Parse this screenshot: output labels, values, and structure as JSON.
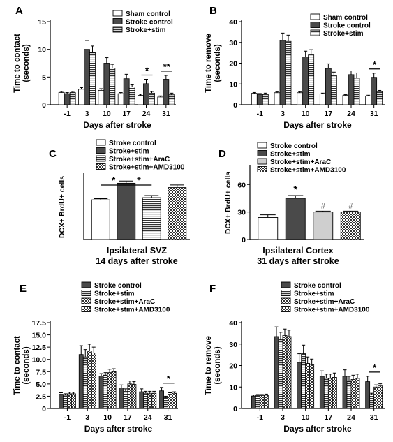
{
  "patterns": {
    "white": "#ffffff",
    "dark": "#4a4a4a",
    "hstripe": "#ffffff",
    "check": "#ffffff",
    "light": "#cfcfcf"
  },
  "chart_data": [
    {
      "panel": "A",
      "type": "bar",
      "ylabel": "Time to contact (seconds)",
      "ylabel_lines": [
        "Time to contact",
        "(seconds)"
      ],
      "xlabel": "Days after stroke",
      "ylim": [
        0,
        15
      ],
      "yticks": [
        0,
        5,
        10,
        15
      ],
      "categories": [
        "-1",
        "3",
        "10",
        "17",
        "24",
        "31"
      ],
      "series": [
        {
          "name": "Sham control",
          "fill": "white",
          "values": [
            2.2,
            2.8,
            2.6,
            2.0,
            1.7,
            1.4
          ],
          "err": [
            0.2,
            0.3,
            0.3,
            0.2,
            0.2,
            0.2
          ]
        },
        {
          "name": "Stroke control",
          "fill": "dark",
          "values": [
            2.0,
            10.0,
            7.5,
            4.7,
            3.8,
            4.6
          ],
          "err": [
            0.2,
            1.6,
            1.0,
            0.8,
            0.8,
            0.7
          ]
        },
        {
          "name": "Stroke+stim",
          "fill": "hstripe",
          "values": [
            2.2,
            9.4,
            6.6,
            3.2,
            2.1,
            1.8
          ],
          "err": [
            0.2,
            1.2,
            0.7,
            0.4,
            0.3,
            0.3
          ]
        }
      ],
      "annotations": [
        {
          "text": "*",
          "cat": 4
        },
        {
          "text": "**",
          "cat": 5
        }
      ]
    },
    {
      "panel": "B",
      "type": "bar",
      "ylabel": "Time to remove (seconds)",
      "ylabel_lines": [
        "Time to remove",
        "(seconds)"
      ],
      "xlabel": "Days after stroke",
      "ylim": [
        0,
        40
      ],
      "yticks": [
        0,
        10,
        20,
        30,
        40
      ],
      "categories": [
        "-1",
        "3",
        "10",
        "17",
        "24",
        "31"
      ],
      "series": [
        {
          "name": "Sham control",
          "fill": "white",
          "values": [
            5.5,
            5.8,
            5.8,
            5.2,
            4.5,
            4.2
          ],
          "err": [
            0.4,
            0.5,
            0.5,
            0.4,
            0.4,
            0.4
          ]
        },
        {
          "name": "Stroke control",
          "fill": "dark",
          "values": [
            5.0,
            31.0,
            23.0,
            17.5,
            14.5,
            13.2
          ],
          "err": [
            0.4,
            3.5,
            2.8,
            2.2,
            1.8,
            2.0
          ]
        },
        {
          "name": "Stroke+stim",
          "fill": "hstripe",
          "values": [
            5.2,
            30.5,
            24.0,
            14.2,
            12.8,
            6.3
          ],
          "err": [
            0.4,
            3.0,
            2.5,
            1.5,
            2.5,
            0.6
          ]
        }
      ],
      "annotations": [
        {
          "text": "*",
          "cat": 5
        }
      ]
    },
    {
      "panel": "C",
      "type": "bar",
      "ylabel": "DCX+ BrdU+ cells",
      "caption": [
        "Ipsilateral SVZ",
        "14 days after stroke"
      ],
      "series": [
        {
          "name": "Stroke control",
          "fill": "white",
          "value": 275,
          "err": 8
        },
        {
          "name": "Stroke+stim",
          "fill": "dark",
          "value": 390,
          "err": 15
        },
        {
          "name": "Stroke+stim+AraC",
          "fill": "hstripe",
          "value": 290,
          "err": 15
        },
        {
          "name": "Stroke+stim+AMD3100",
          "fill": "check",
          "value": 360,
          "err": 18
        }
      ],
      "annotations": [
        {
          "text": "*",
          "between": [
            0,
            1
          ]
        },
        {
          "text": "*",
          "between": [
            1,
            2
          ]
        }
      ]
    },
    {
      "panel": "D",
      "type": "bar",
      "ylabel": "DCX+ BrdU+ cells",
      "ylim": [
        0,
        80
      ],
      "yticks": [
        0,
        30,
        60
      ],
      "caption": [
        "Ipsilateral Cortex",
        "31 days after stroke"
      ],
      "series": [
        {
          "name": "Stroke control",
          "fill": "white",
          "value": 24,
          "err": 3
        },
        {
          "name": "Stroke+stim",
          "fill": "dark",
          "value": 45,
          "err": 3
        },
        {
          "name": "Stroke+stim+AraC",
          "fill": "light",
          "value": 30,
          "err": 1
        },
        {
          "name": "Stroke+stim+AMD3100",
          "fill": "check",
          "value": 30,
          "err": 1
        }
      ],
      "annotations": [
        {
          "text": "*",
          "bar": 1
        },
        {
          "text": "#",
          "bar": 2
        },
        {
          "text": "#",
          "bar": 3
        }
      ]
    },
    {
      "panel": "E",
      "type": "bar",
      "ylabel": "Time to contact (seconds)",
      "ylabel_lines": [
        "Time to contact",
        "(seconds)"
      ],
      "xlabel": "Days after stroke",
      "ylim": [
        0,
        17.5
      ],
      "yticks": [
        0,
        2.5,
        5.0,
        7.5,
        10.0,
        12.5,
        15.0,
        17.5
      ],
      "ytick_labels": [
        "0",
        "2.5",
        "5.0",
        "7.5",
        "10.0",
        "12.5",
        "15.0",
        "17.5"
      ],
      "categories": [
        "-1",
        "3",
        "10",
        "17",
        "24",
        "31"
      ],
      "series": [
        {
          "name": "Stroke control",
          "fill": "dark",
          "values": [
            2.9,
            11.0,
            6.6,
            4.2,
            3.4,
            3.6
          ],
          "err": [
            0.3,
            1.8,
            0.5,
            0.6,
            0.6,
            0.7
          ]
        },
        {
          "name": "Stroke+stim",
          "fill": "hstripe",
          "values": [
            2.7,
            10.5,
            6.8,
            3.5,
            3.1,
            2.2
          ],
          "err": [
            0.3,
            1.5,
            0.5,
            0.5,
            0.4,
            0.3
          ]
        },
        {
          "name": "Stroke+stim+AraC",
          "fill": "check",
          "values": [
            3.0,
            11.7,
            7.3,
            5.0,
            3.0,
            2.9
          ],
          "err": [
            0.3,
            1.4,
            0.7,
            0.6,
            0.5,
            0.3
          ]
        },
        {
          "name": "Stroke+stim+AMD3100",
          "fill": "check",
          "values": [
            3.0,
            11.3,
            7.5,
            4.9,
            3.1,
            3.1
          ],
          "err": [
            0.3,
            1.2,
            0.6,
            0.6,
            0.4,
            0.3
          ]
        }
      ],
      "annotations": [
        {
          "text": "*",
          "cat": 5
        }
      ]
    },
    {
      "panel": "F",
      "type": "bar",
      "ylabel": "Time to remove (seconds)",
      "ylabel_lines": [
        "Time to remove",
        "(seconds)"
      ],
      "xlabel": "Days after stroke",
      "ylim": [
        0,
        40
      ],
      "yticks": [
        0,
        10,
        20,
        30,
        40
      ],
      "categories": [
        "-1",
        "3",
        "10",
        "17",
        "24",
        "31"
      ],
      "series": [
        {
          "name": "Stroke control",
          "fill": "dark",
          "values": [
            5.8,
            33.5,
            21.5,
            15.0,
            15.0,
            12.5
          ],
          "err": [
            0.5,
            4.5,
            4.0,
            2.5,
            3.0,
            2.5
          ]
        },
        {
          "name": "Stroke+stim",
          "fill": "hstripe",
          "values": [
            6.0,
            32.0,
            25.5,
            14.0,
            12.5,
            6.5
          ],
          "err": [
            0.5,
            3.5,
            4.0,
            2.0,
            2.5,
            0.6
          ]
        },
        {
          "name": "Stroke+stim+AraC",
          "fill": "check",
          "values": [
            6.0,
            34.0,
            21.0,
            14.0,
            13.5,
            10.0
          ],
          "err": [
            0.5,
            3.0,
            3.0,
            2.0,
            2.0,
            1.0
          ]
        },
        {
          "name": "Stroke+stim+AMD3100",
          "fill": "check",
          "values": [
            6.2,
            33.5,
            20.5,
            14.5,
            14.0,
            10.5
          ],
          "err": [
            0.5,
            3.0,
            2.5,
            2.0,
            2.0,
            1.0
          ]
        }
      ],
      "annotations": [
        {
          "text": "*",
          "cat": 5
        }
      ]
    }
  ]
}
